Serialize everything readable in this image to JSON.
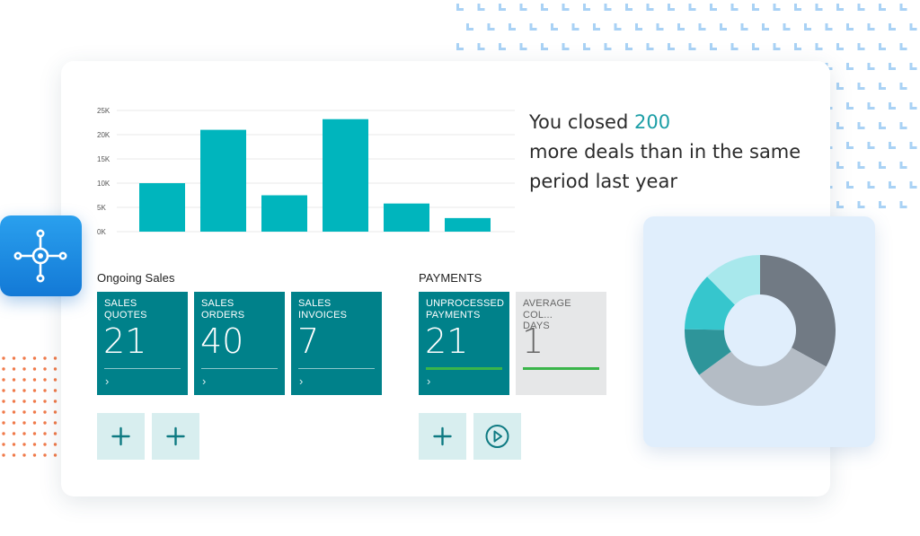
{
  "headline": {
    "prefix": "You closed ",
    "number": "200",
    "line2": "more deals than in the same",
    "line3": "period last year"
  },
  "chart_data": {
    "type": "bar",
    "categories": [
      "",
      "",
      "",
      "",
      "",
      ""
    ],
    "values": [
      10000,
      21000,
      7500,
      23200,
      5800,
      2800
    ],
    "y_ticks": [
      "0K",
      "5K",
      "10K",
      "15K",
      "20K",
      "25K"
    ],
    "ylim": [
      0,
      25000
    ],
    "grid": true,
    "color": "#00b5bd"
  },
  "ongoing_sales": {
    "title": "Ongoing Sales",
    "tiles": [
      {
        "label": "SALES QUOTES",
        "value": "21",
        "arrow": "›"
      },
      {
        "label": "SALES ORDERS",
        "value": "40",
        "arrow": "›"
      },
      {
        "label": "SALES\nINVOICES",
        "value": "7",
        "arrow": "›"
      }
    ]
  },
  "payments": {
    "title": "PAYMENTS",
    "tiles": [
      {
        "label": "UNPROCESSED\nPAYMENTS",
        "value": "21",
        "arrow": "›"
      },
      {
        "label": "AVERAGE COL...\nDAYS",
        "value": "1"
      }
    ]
  },
  "donut": {
    "segments": [
      {
        "value": 32,
        "color": "#717a84"
      },
      {
        "value": 31,
        "color": "#b4bcc5"
      },
      {
        "value": 10,
        "color": "#2e959a"
      },
      {
        "value": 12,
        "color": "#36c6cd"
      },
      {
        "value": 12,
        "color": "#a8e8ec"
      }
    ]
  },
  "icons": {
    "app": "connector-hub-icon",
    "add": "plus-icon",
    "play": "play-circle-icon",
    "chevron": "chevron-right-icon"
  },
  "colors": {
    "accent": "#00818a",
    "bar": "#00b5bd",
    "green": "#3ab54a",
    "app_icon": "#1b86e0",
    "highlight": "#1b9ea6"
  }
}
